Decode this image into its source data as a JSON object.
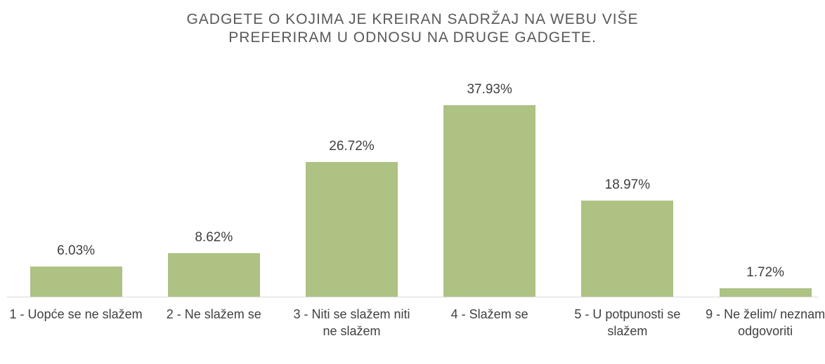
{
  "chart_data": {
    "type": "bar",
    "title": [
      "GADGETE O KOJIMA JE KREIRAN SADRŽAJ NA WEBU VIŠE",
      "PREFERIRAM U ODNOSU NA DRUGE GADGETE."
    ],
    "categories": [
      "1 - Uopće se ne slažem",
      "2 - Ne slažem se",
      "3 - Niti se slažem niti ne slažem",
      "4 - Slažem se",
      "5 - U potpunosti se slažem",
      "9 - Ne želim/ neznam odgovoriti"
    ],
    "values": [
      6.03,
      8.62,
      26.72,
      37.93,
      18.97,
      1.72
    ],
    "value_labels": [
      "6.03%",
      "8.62%",
      "26.72%",
      "37.93%",
      "18.97%",
      "1.72%"
    ],
    "color": "#adc283"
  }
}
